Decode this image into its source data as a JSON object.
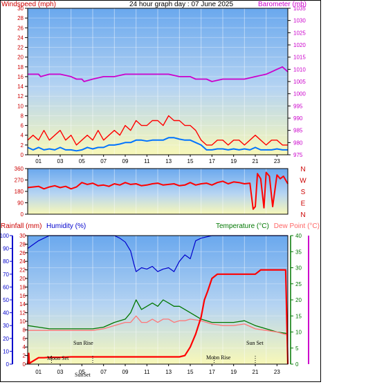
{
  "title": "24 hour graph day : 07 June 2025",
  "colors": {
    "wind": "#ff0000",
    "gust": "#ff0000",
    "avg_wind": "#0073ff",
    "barometer": "#cc00cc",
    "direction": "#ff0000",
    "rain": "#ff0000",
    "humidity": "#0000cc",
    "temperature": "#007700",
    "dewpoint": "#ff7777",
    "rain_axis": "#cc0000",
    "humidity_axis": "#0000cc",
    "temp_axis": "#007700",
    "pink_axis": "#cc00cc"
  },
  "x_ticks": [
    "01",
    "03",
    "05",
    "07",
    "09",
    "11",
    "13",
    "15",
    "17",
    "19",
    "21",
    "23"
  ],
  "chart_data": [
    {
      "type": "line",
      "name": "wind-barometer",
      "left_label": "Windspeed (mph)",
      "right_label": "Barometer (mb)",
      "x_range_hours": [
        0,
        24
      ],
      "left_ylim": [
        0,
        30
      ],
      "left_ticks": [
        0,
        2,
        4,
        6,
        8,
        10,
        12,
        14,
        16,
        18,
        20,
        22,
        24,
        26,
        28,
        30
      ],
      "right_ylim": [
        975,
        1035
      ],
      "right_ticks": [
        975,
        980,
        985,
        990,
        995,
        1000,
        1005,
        1010,
        1015,
        1020,
        1025,
        1030,
        1035
      ],
      "gust": {
        "x": [
          0,
          0.5,
          1,
          1.5,
          2,
          2.5,
          3,
          3.5,
          4,
          4.5,
          5,
          5.5,
          6,
          6.5,
          7,
          7.5,
          8,
          8.5,
          9,
          9.5,
          10,
          10.5,
          11,
          11.5,
          12,
          12.5,
          13,
          13.5,
          14,
          14.5,
          15,
          15.5,
          16,
          16.5,
          17,
          17.5,
          18,
          18.5,
          19,
          19.5,
          20,
          20.5,
          21,
          21.5,
          22,
          22.5,
          23,
          23.5,
          24
        ],
        "values": [
          3,
          4,
          3,
          5,
          3,
          4,
          5,
          3,
          4,
          2,
          3,
          4,
          3,
          5,
          3,
          4,
          5,
          4,
          6,
          5,
          7,
          6,
          6,
          7,
          7,
          6,
          8,
          7,
          7,
          6,
          6,
          5,
          3,
          2,
          2,
          3,
          3,
          2,
          3,
          3,
          2,
          3,
          4,
          3,
          2,
          3,
          3,
          2,
          2
        ]
      },
      "avg_wind": {
        "x": [
          0,
          0.5,
          1,
          1.5,
          2,
          2.5,
          3,
          3.5,
          4,
          4.5,
          5,
          5.5,
          6,
          6.5,
          7,
          7.5,
          8,
          8.5,
          9,
          9.5,
          10,
          10.5,
          11,
          11.5,
          12,
          12.5,
          13,
          13.5,
          14,
          14.5,
          15,
          15.5,
          16,
          16.5,
          17,
          17.5,
          18,
          18.5,
          19,
          19.5,
          20,
          20.5,
          21,
          21.5,
          22,
          22.5,
          23,
          23.5,
          24
        ],
        "values": [
          1.5,
          1,
          1.5,
          1,
          1.2,
          1,
          1.5,
          1,
          1,
          0.8,
          1,
          1.5,
          1.2,
          1.5,
          1.5,
          2,
          2,
          2.2,
          2.5,
          2.5,
          3,
          3,
          2.8,
          3,
          3,
          3,
          3.5,
          3.5,
          3.2,
          3,
          3,
          2.5,
          2,
          1,
          1,
          1.2,
          1.2,
          1,
          1.2,
          1,
          1.2,
          1,
          1.5,
          1,
          1,
          1,
          1.2,
          1,
          1
        ]
      },
      "barometer": {
        "x": [
          0,
          1,
          1.2,
          2,
          3,
          4,
          4.5,
          5,
          5.2,
          6,
          7,
          8,
          9,
          10,
          11,
          12,
          13,
          14,
          15,
          15.5,
          16,
          16.5,
          17,
          18,
          19,
          20,
          21,
          22,
          22.5,
          23,
          23.5,
          24
        ],
        "values": [
          1008,
          1008,
          1007,
          1008,
          1008,
          1007,
          1006,
          1006,
          1005,
          1006,
          1007,
          1007,
          1008,
          1008,
          1008,
          1008,
          1008,
          1007,
          1007,
          1006,
          1006,
          1006,
          1005,
          1006,
          1006,
          1006,
          1007,
          1008,
          1009,
          1010,
          1011,
          1009
        ]
      }
    },
    {
      "type": "line",
      "name": "wind-direction",
      "ylim": [
        0,
        360
      ],
      "ticks": [
        0,
        90,
        180,
        270,
        360
      ],
      "compass": [
        "N",
        "W",
        "S",
        "E",
        "N"
      ],
      "x": [
        0,
        0.5,
        1,
        1.5,
        2,
        2.5,
        3,
        3.5,
        4,
        4.5,
        5,
        5.5,
        6,
        6.5,
        7,
        7.5,
        8,
        8.5,
        9,
        9.5,
        10,
        10.5,
        11,
        11.5,
        12,
        12.5,
        13,
        13.5,
        14,
        14.5,
        15,
        15.5,
        16,
        16.5,
        17,
        17.5,
        18,
        18.5,
        19,
        19.5,
        20,
        20.5,
        20.8,
        21,
        21.2,
        21.5,
        21.8,
        22,
        22.3,
        22.6,
        23,
        23.3,
        23.6,
        24
      ],
      "values": [
        210,
        215,
        220,
        200,
        215,
        225,
        210,
        220,
        200,
        215,
        250,
        235,
        245,
        225,
        230,
        220,
        240,
        230,
        250,
        235,
        240,
        225,
        230,
        240,
        245,
        230,
        235,
        240,
        225,
        230,
        250,
        230,
        240,
        245,
        230,
        250,
        260,
        240,
        255,
        250,
        240,
        245,
        40,
        60,
        320,
        280,
        50,
        330,
        300,
        60,
        310,
        280,
        300,
        240
      ]
    },
    {
      "type": "line",
      "name": "rain-humidity-temperature",
      "rain_label": "Rainfall (mm)",
      "humidity_label": "Humidity (%)",
      "temp_label": "Temperature (°C)",
      "dew_label": "Dew Point (°C)",
      "rain_ylim": [
        0,
        30
      ],
      "rain_ticks": [
        0,
        2,
        4,
        6,
        8,
        10,
        12,
        14,
        16,
        18,
        20,
        22,
        24,
        26,
        28,
        30
      ],
      "humidity_ylim": [
        0,
        100
      ],
      "humidity_ticks": [
        0,
        10,
        20,
        30,
        40,
        50,
        60,
        70,
        80,
        90,
        100
      ],
      "temp_ylim": [
        0,
        40
      ],
      "temp_ticks": [
        0,
        5,
        10,
        15,
        20,
        25,
        30,
        35,
        40
      ],
      "humidity": {
        "x": [
          0,
          0.5,
          1,
          1.5,
          2,
          3,
          4,
          5,
          6,
          7,
          8,
          8.5,
          9,
          9.5,
          9.8,
          10,
          10.5,
          11,
          11.5,
          12,
          12.5,
          13,
          13.5,
          14,
          14.5,
          15,
          15.5,
          16,
          17,
          18,
          19,
          20,
          21,
          22,
          23,
          24
        ],
        "values": [
          90,
          93,
          96,
          98,
          100,
          100,
          100,
          100,
          100,
          100,
          100,
          98,
          95,
          88,
          78,
          72,
          75,
          74,
          76,
          72,
          74,
          75,
          72,
          80,
          85,
          82,
          96,
          98,
          100,
          100,
          100,
          100,
          100,
          100,
          100,
          100
        ]
      },
      "temperature": {
        "x": [
          0,
          1,
          2,
          3,
          4,
          5,
          6,
          7,
          8,
          9,
          9.5,
          10,
          10.5,
          11,
          11.5,
          12,
          12.5,
          13,
          13.5,
          14,
          14.5,
          15,
          16,
          17,
          18,
          19,
          20,
          21,
          22,
          23,
          24
        ],
        "values": [
          12,
          11.5,
          11,
          11,
          11,
          11,
          11,
          11.5,
          13,
          14,
          16,
          20,
          17,
          18,
          19,
          18,
          20,
          19,
          18,
          18,
          17,
          16,
          14,
          13,
          13,
          13,
          13.5,
          12,
          11,
          10,
          9.5
        ]
      },
      "dewpoint": {
        "x": [
          0,
          1,
          2,
          3,
          4,
          5,
          6,
          7,
          8,
          9,
          9.5,
          10,
          10.5,
          11,
          11.5,
          12,
          12.5,
          13,
          13.5,
          14,
          14.5,
          15,
          16,
          17,
          18,
          19,
          20,
          21,
          22,
          23,
          24
        ],
        "values": [
          10.5,
          10.5,
          10.5,
          10.5,
          10.5,
          10.5,
          10.5,
          11,
          12,
          13,
          13,
          15,
          13,
          13,
          14,
          13,
          14,
          14,
          13,
          13.5,
          13.5,
          14,
          13.5,
          12.5,
          12,
          12,
          12.5,
          11,
          10.5,
          10,
          9
        ]
      },
      "rainfall": {
        "x": [
          0,
          0.1,
          0.15,
          1,
          1.5,
          2,
          3,
          4,
          5,
          6,
          7,
          8,
          9,
          10,
          11,
          12,
          13,
          14,
          14.5,
          15,
          15.5,
          16,
          16.3,
          16.6,
          17,
          17.5,
          18,
          19,
          20,
          21,
          21.5,
          22,
          23,
          23.5,
          23.8,
          24
        ],
        "values": [
          0,
          2.5,
          0.2,
          1.5,
          1.5,
          1.6,
          1.6,
          1.7,
          1.7,
          1.7,
          1.7,
          1.7,
          1.7,
          1.7,
          1.7,
          1.7,
          1.7,
          1.7,
          2,
          4,
          7,
          11,
          15,
          17,
          20,
          21,
          21,
          21,
          21,
          21,
          22,
          22,
          22,
          22,
          22,
          0
        ]
      },
      "annotations": [
        "Moon Set",
        "Sun Rise",
        "Moon Rise",
        "Sun Set",
        "SunSet"
      ]
    }
  ]
}
